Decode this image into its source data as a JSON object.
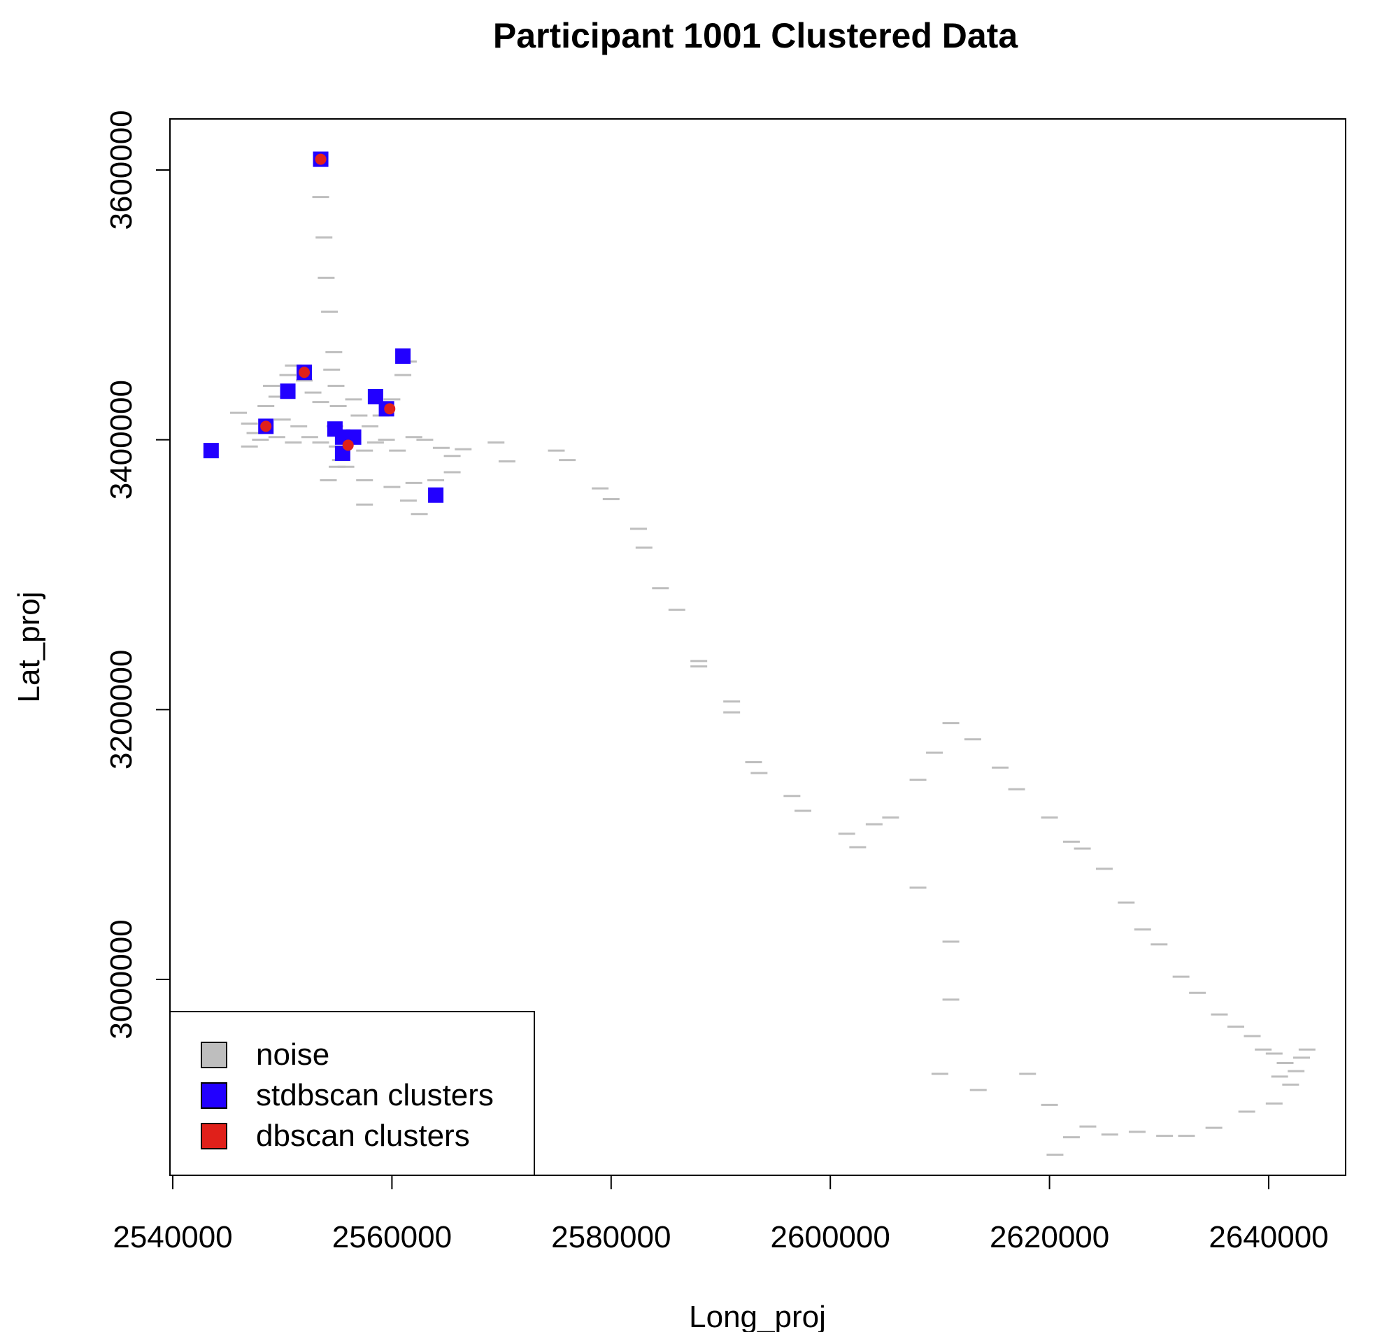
{
  "chart_data": {
    "type": "scatter",
    "title": "Participant 1001 Clustered Data",
    "xlabel": "Long_proj",
    "ylabel": "Lat_proj",
    "xlim": [
      2540000,
      2647000
    ],
    "ylim": [
      2859000,
      3638000
    ],
    "xticks": [
      2540000,
      2560000,
      2580000,
      2600000,
      2620000,
      2640000
    ],
    "xtick_labels": [
      "2540000",
      "2560000",
      "2580000",
      "2600000",
      "2620000",
      "2640000"
    ],
    "yticks": [
      3000000,
      3200000,
      3400000,
      3600000
    ],
    "ytick_labels": [
      "3000000",
      "3200000",
      "3400000",
      "3600000"
    ],
    "grid": false,
    "legend": {
      "position": "bottom-left",
      "entries": [
        {
          "label": "noise",
          "color": "#bebebe"
        },
        {
          "label": "stdbscan clusters",
          "color": "#2200ff"
        },
        {
          "label": "dbscan clusters",
          "color": "#e0201a"
        }
      ]
    },
    "series": [
      {
        "name": "noise",
        "marker": "dash",
        "color": "#bebebe",
        "points": [
          [
            2553500,
            3580000
          ],
          [
            2553800,
            3550000
          ],
          [
            2554000,
            3520000
          ],
          [
            2554300,
            3495000
          ],
          [
            2554700,
            3465000
          ],
          [
            2554500,
            3452000
          ],
          [
            2554900,
            3440000
          ],
          [
            2555100,
            3425000
          ],
          [
            2554800,
            3410000
          ],
          [
            2555000,
            3395000
          ],
          [
            2555000,
            3380000
          ],
          [
            2554200,
            3370000
          ],
          [
            2555300,
            3385000
          ],
          [
            2556000,
            3405000
          ],
          [
            2546000,
            3420000
          ],
          [
            2547000,
            3412000
          ],
          [
            2547500,
            3405000
          ],
          [
            2548500,
            3425000
          ],
          [
            2549000,
            3440000
          ],
          [
            2549500,
            3432000
          ],
          [
            2550500,
            3448000
          ],
          [
            2551000,
            3455000
          ],
          [
            2552000,
            3444000
          ],
          [
            2552800,
            3435000
          ],
          [
            2553500,
            3428000
          ],
          [
            2550000,
            3415000
          ],
          [
            2551500,
            3410000
          ],
          [
            2552500,
            3402000
          ],
          [
            2553500,
            3398000
          ],
          [
            2549500,
            3402000
          ],
          [
            2551000,
            3398000
          ],
          [
            2556500,
            3430000
          ],
          [
            2557000,
            3418000
          ],
          [
            2558000,
            3410000
          ],
          [
            2559000,
            3418000
          ],
          [
            2560000,
            3430000
          ],
          [
            2561000,
            3448000
          ],
          [
            2561500,
            3458000
          ],
          [
            2559500,
            3400000
          ],
          [
            2560500,
            3392000
          ],
          [
            2562000,
            3402000
          ],
          [
            2563000,
            3400000
          ],
          [
            2564500,
            3394000
          ],
          [
            2565500,
            3388000
          ],
          [
            2566500,
            3393000
          ],
          [
            2557500,
            3392000
          ],
          [
            2558500,
            3398000
          ],
          [
            2555800,
            3380000
          ],
          [
            2557500,
            3370000
          ],
          [
            2560000,
            3365000
          ],
          [
            2562000,
            3368000
          ],
          [
            2564000,
            3370000
          ],
          [
            2565500,
            3376000
          ],
          [
            2557500,
            3352000
          ],
          [
            2561500,
            3355000
          ],
          [
            2562500,
            3345000
          ],
          [
            2547000,
            3395000
          ],
          [
            2548000,
            3400000
          ],
          [
            2569500,
            3398000
          ],
          [
            2570500,
            3384000
          ],
          [
            2575000,
            3392000
          ],
          [
            2576000,
            3385000
          ],
          [
            2579000,
            3364000
          ],
          [
            2580000,
            3356000
          ],
          [
            2582500,
            3334000
          ],
          [
            2583000,
            3320000
          ],
          [
            2584500,
            3290000
          ],
          [
            2586000,
            3274000
          ],
          [
            2588000,
            3236000
          ],
          [
            2588000,
            3232000
          ],
          [
            2591000,
            3206000
          ],
          [
            2591000,
            3198000
          ],
          [
            2593000,
            3161000
          ],
          [
            2593500,
            3153000
          ],
          [
            2596500,
            3136000
          ],
          [
            2597500,
            3125000
          ],
          [
            2601500,
            3108000
          ],
          [
            2602500,
            3098000
          ],
          [
            2604000,
            3115000
          ],
          [
            2605500,
            3120000
          ],
          [
            2608000,
            3148000
          ],
          [
            2609500,
            3168000
          ],
          [
            2611000,
            3190000
          ],
          [
            2613000,
            3178000
          ],
          [
            2615500,
            3157000
          ],
          [
            2617000,
            3141000
          ],
          [
            2620000,
            3120000
          ],
          [
            2622000,
            3102000
          ],
          [
            2623000,
            3097000
          ],
          [
            2625000,
            3082000
          ],
          [
            2627000,
            3057000
          ],
          [
            2628500,
            3037000
          ],
          [
            2630000,
            3026000
          ],
          [
            2632000,
            3002000
          ],
          [
            2633500,
            2990000
          ],
          [
            2635500,
            2974000
          ],
          [
            2637000,
            2965000
          ],
          [
            2638500,
            2958000
          ],
          [
            2639500,
            2948000
          ],
          [
            2640500,
            2945000
          ],
          [
            2641500,
            2938000
          ],
          [
            2642500,
            2932000
          ],
          [
            2643000,
            2942000
          ],
          [
            2643500,
            2948000
          ],
          [
            2641000,
            2928000
          ],
          [
            2642000,
            2922000
          ],
          [
            2640500,
            2908000
          ],
          [
            2638000,
            2902000
          ],
          [
            2635000,
            2890000
          ],
          [
            2632500,
            2884000
          ],
          [
            2630500,
            2884000
          ],
          [
            2628000,
            2887000
          ],
          [
            2625500,
            2885000
          ],
          [
            2623500,
            2891000
          ],
          [
            2622000,
            2883000
          ],
          [
            2620500,
            2870000
          ],
          [
            2620000,
            2907000
          ],
          [
            2618000,
            2930000
          ],
          [
            2613500,
            2918000
          ],
          [
            2610000,
            2930000
          ],
          [
            2611000,
            2985000
          ],
          [
            2611000,
            3028000
          ],
          [
            2608000,
            3068000
          ]
        ]
      },
      {
        "name": "stdbscan clusters",
        "marker": "square",
        "color": "#2200ff",
        "points": [
          [
            2553500,
            3608000
          ],
          [
            2561000,
            3462000
          ],
          [
            2552000,
            3450000
          ],
          [
            2550500,
            3436000
          ],
          [
            2558500,
            3432000
          ],
          [
            2559500,
            3423000
          ],
          [
            2548500,
            3410000
          ],
          [
            2554800,
            3408000
          ],
          [
            2555500,
            3402000
          ],
          [
            2556500,
            3402000
          ],
          [
            2555500,
            3390000
          ],
          [
            2543500,
            3392000
          ],
          [
            2564000,
            3359000
          ]
        ]
      },
      {
        "name": "dbscan clusters",
        "marker": "circle",
        "color": "#e0201a",
        "points": [
          [
            2553500,
            3608000
          ],
          [
            2552000,
            3450000
          ],
          [
            2559800,
            3423000
          ],
          [
            2548500,
            3410000
          ],
          [
            2556000,
            3396000
          ]
        ]
      }
    ]
  }
}
